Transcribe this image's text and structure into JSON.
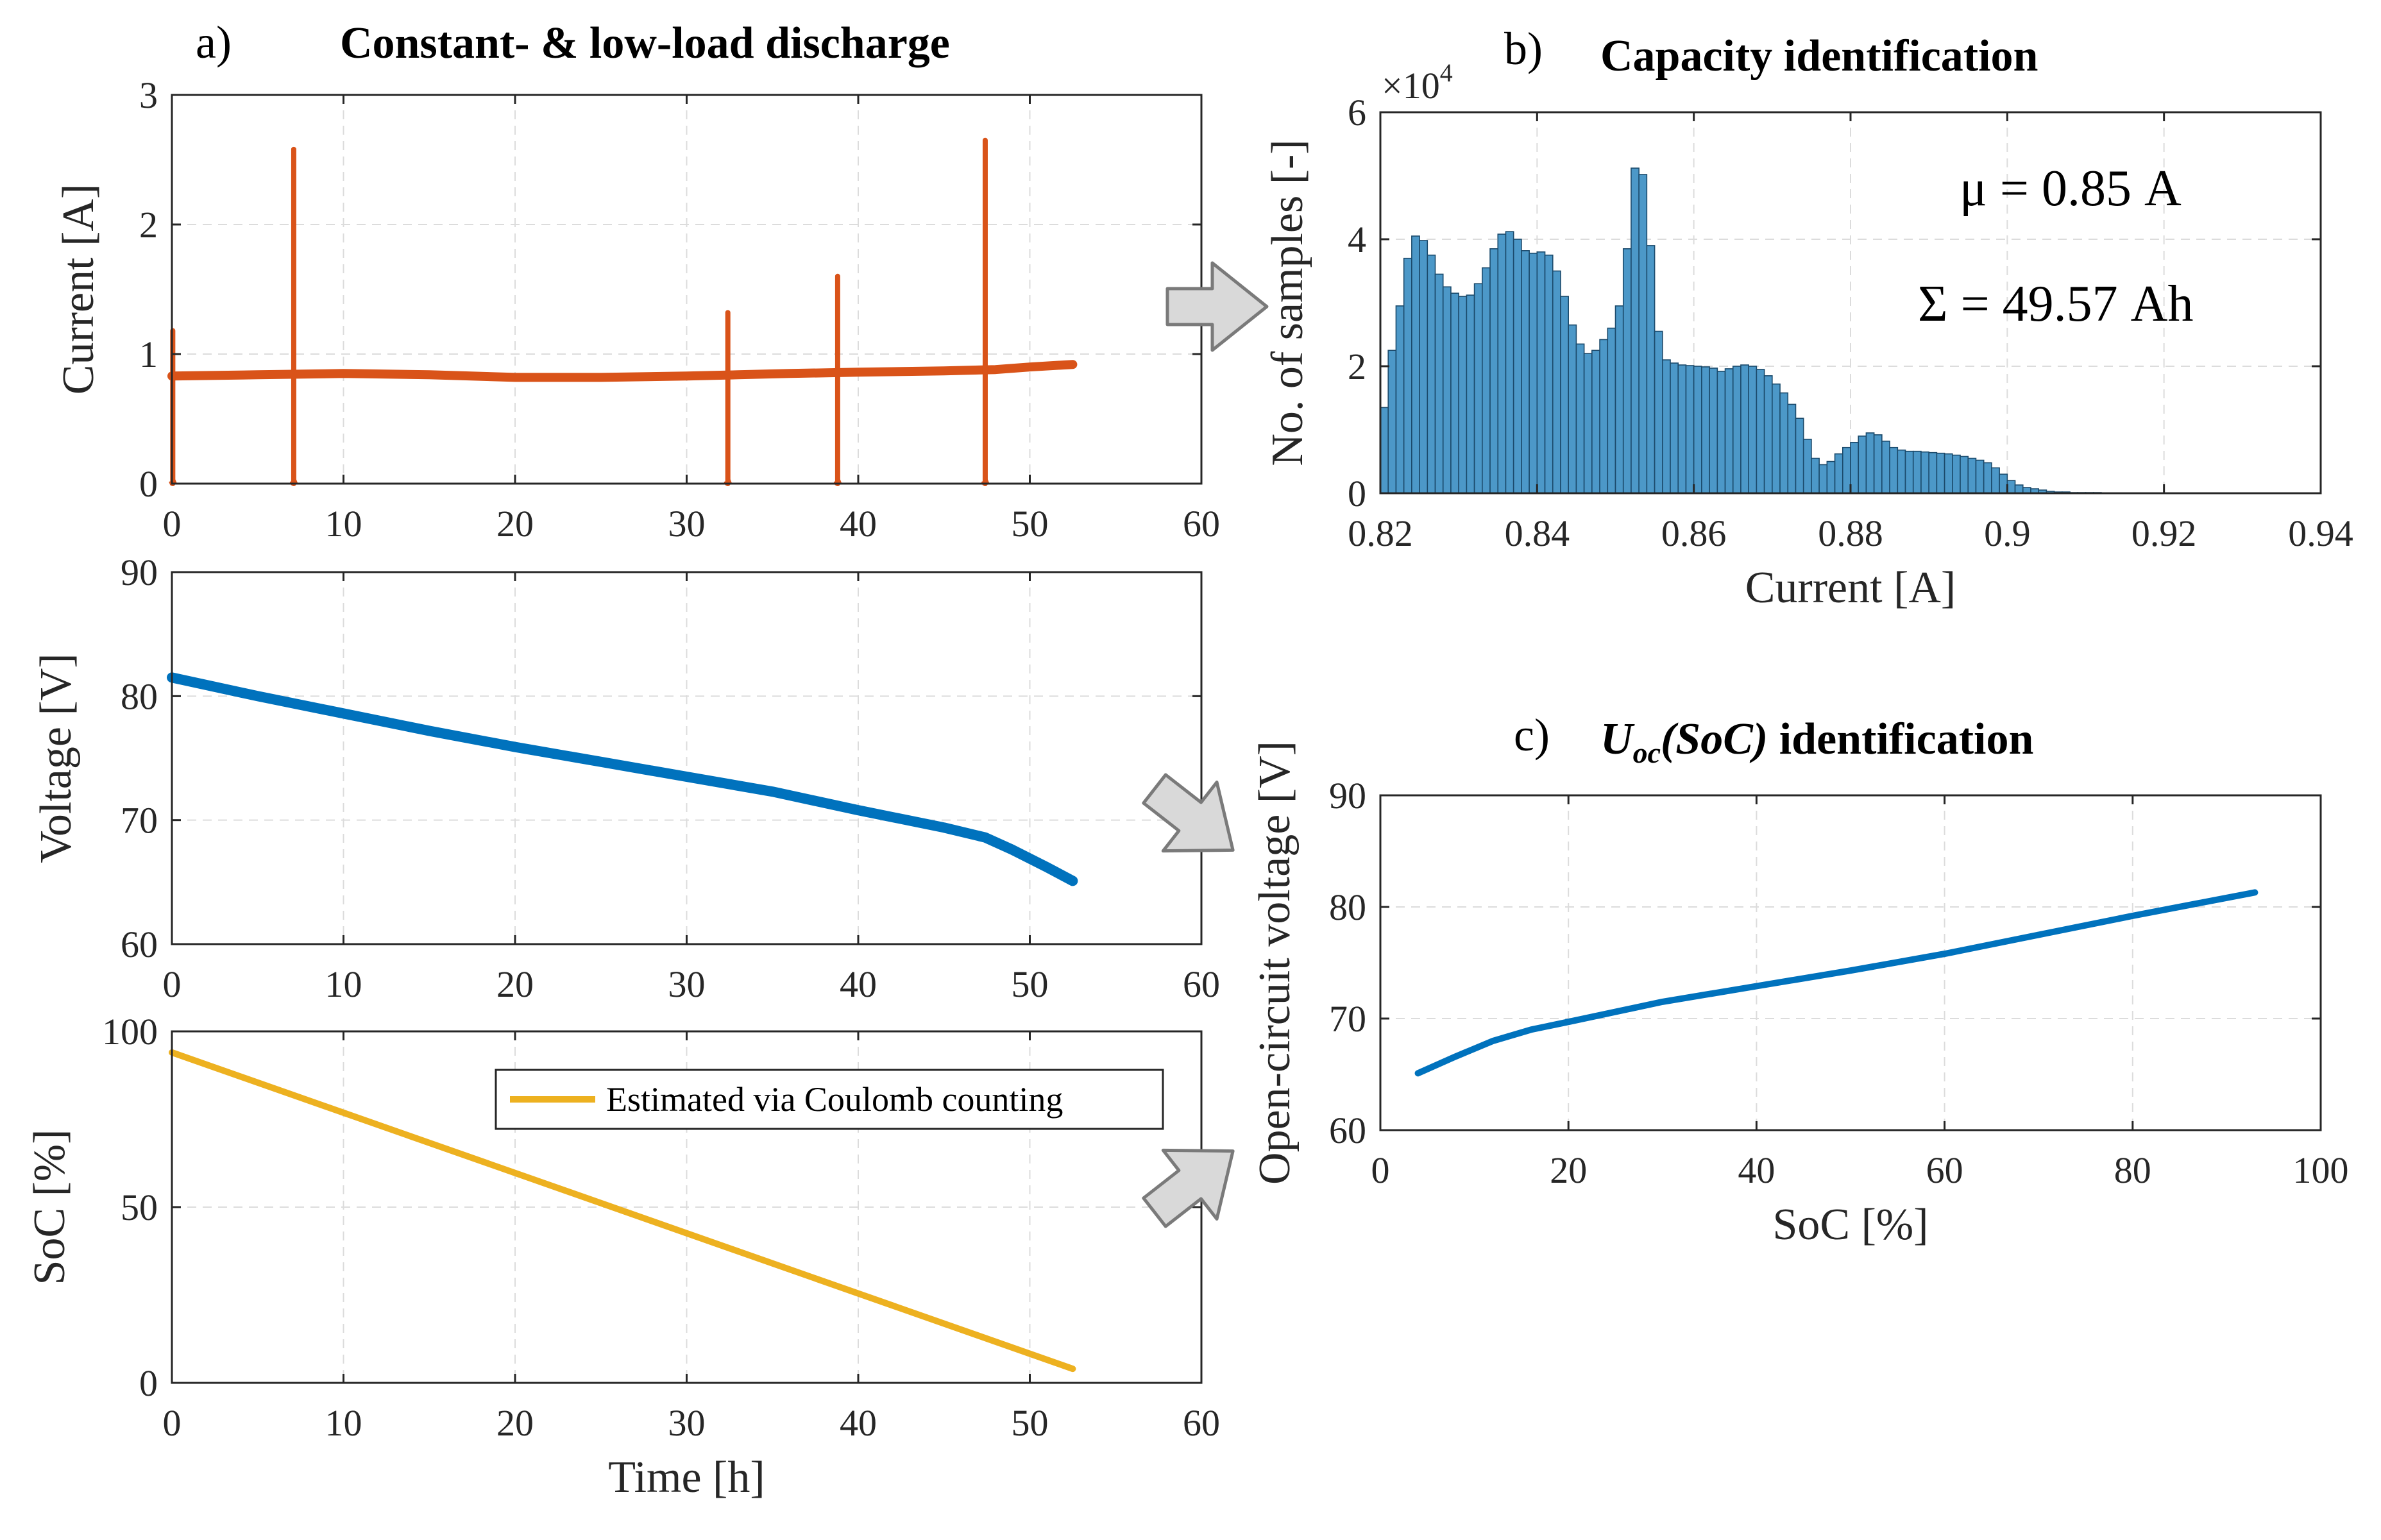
{
  "panels": {
    "a": "a)",
    "b": "b)",
    "c": "c)"
  },
  "titles": {
    "a": "Constant- & low-load discharge",
    "b": "Capacity identification",
    "c_sym": "U",
    "c_sub": "oc",
    "c_arg": "(SoC)",
    "c_rest": " identification"
  },
  "annotations": {
    "mu": "μ = 0.85 A",
    "sigma": "Σ = 49.57 Ah"
  },
  "colors": {
    "current": "#d95319",
    "voltage": "#0072bd",
    "soc": "#edb120",
    "hist_fill": "#4c98c8",
    "hist_edge": "#1b4a6b",
    "arrow_fill": "#d9d9d9",
    "arrow_edge": "#7a7a7a"
  },
  "chart_data": [
    {
      "id": "current",
      "type": "line",
      "title": "",
      "xlabel": "",
      "ylabel": "Current [A]",
      "xlim": [
        0,
        60
      ],
      "ylim": [
        0,
        3
      ],
      "xticks": [
        "0",
        "10",
        "20",
        "30",
        "40",
        "50",
        "60"
      ],
      "yticks": [
        "0",
        "1",
        "2",
        "3"
      ],
      "grid": true,
      "series": [
        {
          "name": "Current",
          "baseline": [
            [
              0,
              0.83
            ],
            [
              5,
              0.84
            ],
            [
              10,
              0.85
            ],
            [
              15,
              0.84
            ],
            [
              20,
              0.82
            ],
            [
              25,
              0.82
            ],
            [
              30,
              0.83
            ],
            [
              33,
              0.84
            ],
            [
              36,
              0.85
            ],
            [
              40,
              0.86
            ],
            [
              45,
              0.87
            ],
            [
              48,
              0.88
            ],
            [
              50,
              0.9
            ],
            [
              52.5,
              0.92
            ]
          ],
          "spikes": [
            {
              "t": 0.05,
              "max": 1.18,
              "min": 0
            },
            {
              "t": 7.1,
              "max": 2.58,
              "min": 0
            },
            {
              "t": 32.4,
              "max": 1.32,
              "min": 0
            },
            {
              "t": 38.8,
              "max": 1.6,
              "min": 0
            },
            {
              "t": 47.4,
              "max": 2.65,
              "min": 0
            }
          ]
        }
      ]
    },
    {
      "id": "voltage",
      "type": "line",
      "title": "",
      "xlabel": "",
      "ylabel": "Voltage [V]",
      "xlim": [
        0,
        60
      ],
      "ylim": [
        60,
        90
      ],
      "xticks": [
        "0",
        "10",
        "20",
        "30",
        "40",
        "50",
        "60"
      ],
      "yticks": [
        "60",
        "70",
        "80",
        "90"
      ],
      "grid": true,
      "series": [
        {
          "name": "Voltage",
          "points": [
            [
              0,
              81.5
            ],
            [
              5,
              80.0
            ],
            [
              10,
              78.6
            ],
            [
              15,
              77.2
            ],
            [
              20,
              75.9
            ],
            [
              25,
              74.7
            ],
            [
              30,
              73.5
            ],
            [
              35,
              72.3
            ],
            [
              40,
              70.8
            ],
            [
              45,
              69.4
            ],
            [
              47.4,
              68.6
            ],
            [
              49,
              67.6
            ],
            [
              51,
              66.2
            ],
            [
              52.5,
              65.1
            ]
          ]
        }
      ]
    },
    {
      "id": "soc",
      "type": "line",
      "title": "",
      "xlabel": "Time [h]",
      "ylabel": "SoC [%]",
      "xlim": [
        0,
        60
      ],
      "ylim": [
        0,
        100
      ],
      "xticks": [
        "0",
        "10",
        "20",
        "30",
        "40",
        "50",
        "60"
      ],
      "yticks": [
        "0",
        "50",
        "100"
      ],
      "grid": true,
      "legend": {
        "label": "Estimated via Coulomb counting",
        "placement": "top-right"
      },
      "series": [
        {
          "name": "Estimated via Coulomb counting",
          "points": [
            [
              0,
              94
            ],
            [
              52.5,
              4
            ]
          ]
        }
      ]
    },
    {
      "id": "histogram",
      "type": "bar",
      "title": "Capacity identification",
      "xlabel": "Current [A]",
      "ylabel": "No. of samples [-]",
      "y_multiplier": "×10",
      "y_exponent": "4",
      "xlim": [
        0.82,
        0.94
      ],
      "ylim": [
        0,
        6
      ],
      "xticks": [
        "0.82",
        "0.84",
        "0.86",
        "0.88",
        "0.9",
        "0.92",
        "0.94"
      ],
      "yticks": [
        "0",
        "2",
        "4",
        "6"
      ],
      "grid": true,
      "bin_start": 0.82,
      "bin_width": 0.001,
      "values": [
        1.35,
        2.25,
        2.95,
        3.7,
        4.05,
        3.98,
        3.75,
        3.45,
        3.25,
        3.15,
        3.1,
        3.12,
        3.3,
        3.55,
        3.85,
        4.08,
        4.12,
        4.0,
        3.82,
        3.78,
        3.8,
        3.75,
        3.5,
        3.1,
        2.65,
        2.35,
        2.2,
        2.25,
        2.42,
        2.6,
        2.95,
        3.85,
        5.12,
        5.02,
        3.9,
        2.55,
        2.1,
        2.05,
        2.02,
        2.01,
        2.0,
        1.99,
        1.97,
        1.92,
        1.96,
        2.0,
        2.02,
        2.0,
        1.95,
        1.85,
        1.72,
        1.58,
        1.4,
        1.18,
        0.85,
        0.55,
        0.45,
        0.5,
        0.62,
        0.72,
        0.8,
        0.9,
        0.95,
        0.92,
        0.82,
        0.72,
        0.68,
        0.66,
        0.66,
        0.65,
        0.64,
        0.63,
        0.62,
        0.6,
        0.58,
        0.55,
        0.52,
        0.48,
        0.4,
        0.3,
        0.2,
        0.13,
        0.09,
        0.07,
        0.05,
        0.03,
        0.02,
        0.02,
        0.01,
        0.01,
        0.01,
        0.01,
        0.005,
        0.005,
        0.005,
        0.003,
        0.003,
        0.002,
        0.002,
        0.001,
        0.001,
        0.001,
        0.001,
        0.001,
        0.001,
        0.001,
        0.001,
        0.001,
        0.001,
        0.001,
        0.001,
        0.001,
        0.001,
        0.001,
        0.001,
        0.001,
        0.001,
        0.001,
        0.001,
        0.001
      ]
    },
    {
      "id": "ocv",
      "type": "line",
      "title": "Uoc(SoC) identification",
      "xlabel": "SoC [%]",
      "ylabel": "Open-circuit voltage [V]",
      "xlim": [
        0,
        100
      ],
      "ylim": [
        60,
        90
      ],
      "xticks": [
        "0",
        "20",
        "40",
        "60",
        "80",
        "100"
      ],
      "yticks": [
        "60",
        "70",
        "80",
        "90"
      ],
      "grid": true,
      "series": [
        {
          "name": "Uoc",
          "points": [
            [
              4,
              65.1
            ],
            [
              8,
              66.6
            ],
            [
              12,
              68.0
            ],
            [
              16,
              69.0
            ],
            [
              20,
              69.7
            ],
            [
              30,
              71.5
            ],
            [
              40,
              72.9
            ],
            [
              50,
              74.3
            ],
            [
              60,
              75.8
            ],
            [
              70,
              77.5
            ],
            [
              80,
              79.2
            ],
            [
              93,
              81.3
            ]
          ]
        }
      ]
    }
  ]
}
